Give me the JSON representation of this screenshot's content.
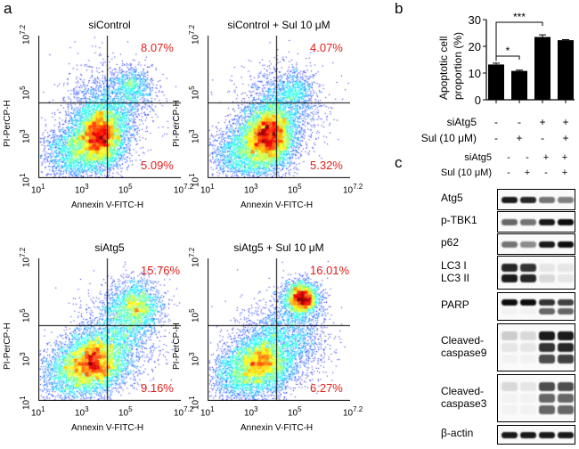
{
  "panel_a": {
    "letter": "a",
    "x_axis_label": "Annexin V-FITC-H",
    "y_axis_label": "PI-PerCP-H",
    "ticks": [
      "10",
      "1",
      "10",
      "3",
      "10",
      "5",
      "10",
      "7.2"
    ],
    "plots": [
      {
        "title": "siControl",
        "upper_right_pct": "8.07%",
        "lower_right_pct": "5.09%"
      },
      {
        "title": "siControl + Sul 10 μM",
        "upper_right_pct": "4.07%",
        "lower_right_pct": "5.32%"
      },
      {
        "title": "siAtg5",
        "upper_right_pct": "15.76%",
        "lower_right_pct": "9.16%"
      },
      {
        "title": "siAtg5 + Sul 10 μM",
        "upper_right_pct": "16.01%",
        "lower_right_pct": "6.27%"
      }
    ]
  },
  "panel_b": {
    "letter": "b",
    "chart_data": {
      "type": "bar",
      "ylabel_line1": "Apoptotic cell",
      "ylabel_line2": "proportion (%)",
      "ylim": [
        0,
        30
      ],
      "yticks": [
        "0",
        "10",
        "20",
        "30"
      ],
      "values": [
        13.2,
        10.8,
        23.5,
        22.3
      ],
      "errors": [
        0.5,
        0.3,
        0.8,
        0.2
      ],
      "significance": [
        {
          "label": "*",
          "from": 0,
          "to": 1
        },
        {
          "label": "***",
          "from": 0,
          "to": 2
        }
      ]
    },
    "row_labels": [
      "siAtg5",
      "Sul (10 μM)"
    ],
    "siAtg5": [
      "-",
      "-",
      "+",
      "+"
    ],
    "sul": [
      "-",
      "+",
      "-",
      "+"
    ]
  },
  "panel_c": {
    "letter": "c",
    "row_labels": [
      "siAtg5",
      "Sul (10 μM)"
    ],
    "siAtg5": [
      "-",
      "-",
      "+",
      "+"
    ],
    "sul": [
      "-",
      "+",
      "-",
      "+"
    ],
    "blots": [
      {
        "label": "Atg5",
        "bands": [
          [
            0.9,
            0.85,
            0.55,
            0.5
          ]
        ]
      },
      {
        "label": "p-TBK1",
        "bands": [
          [
            0.6,
            0.55,
            0.9,
            0.95
          ]
        ]
      },
      {
        "label": "p62",
        "bands": [
          [
            0.55,
            0.45,
            0.9,
            0.95
          ]
        ]
      },
      {
        "label": "LC3  I",
        "label2": "LC3 II",
        "bands": [
          [
            0.85,
            0.8,
            0.1,
            0.1
          ],
          [
            0.9,
            0.85,
            0.15,
            0.1
          ]
        ]
      },
      {
        "label": "PARP",
        "bands": [
          [
            0.95,
            0.95,
            0.8,
            0.75
          ],
          [
            0.05,
            0.05,
            0.6,
            0.6
          ]
        ]
      },
      {
        "label": "Cleaved-",
        "label2": "caspase9",
        "bands": [
          [
            0.2,
            0.15,
            0.9,
            0.9
          ],
          [
            0.1,
            0.1,
            0.8,
            0.85
          ],
          [
            0.05,
            0.05,
            0.7,
            0.75
          ]
        ]
      },
      {
        "label": "Cleaved-",
        "label2": "caspase3",
        "bands": [
          [
            0.15,
            0.1,
            0.7,
            0.7
          ],
          [
            0.05,
            0.05,
            0.6,
            0.6
          ],
          [
            0.05,
            0.05,
            0.6,
            0.6
          ]
        ]
      },
      {
        "label": "β-actin",
        "bands": [
          [
            0.9,
            0.9,
            0.9,
            0.9
          ]
        ]
      }
    ]
  }
}
